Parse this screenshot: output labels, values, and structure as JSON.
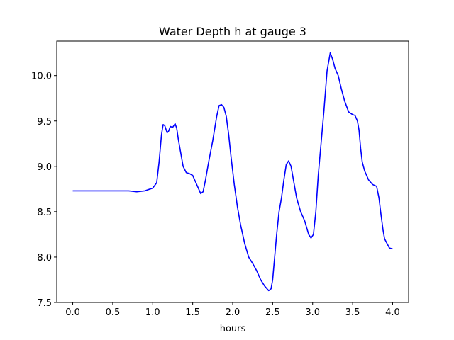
{
  "chart_data": {
    "type": "line",
    "title": "Water Depth h at gauge 3",
    "xlabel": "hours",
    "ylabel": "",
    "xlim": [
      -0.2,
      4.2
    ],
    "ylim": [
      7.5,
      10.38
    ],
    "xticks": [
      0.0,
      0.5,
      1.0,
      1.5,
      2.0,
      2.5,
      3.0,
      3.5,
      4.0
    ],
    "xtick_labels": [
      "0.0",
      "0.5",
      "1.0",
      "1.5",
      "2.0",
      "2.5",
      "3.0",
      "3.5",
      "4.0"
    ],
    "yticks": [
      7.5,
      8.0,
      8.5,
      9.0,
      9.5,
      10.0
    ],
    "ytick_labels": [
      "7.5",
      "8.0",
      "8.5",
      "9.0",
      "9.5",
      "10.0"
    ],
    "grid": false,
    "series": [
      {
        "color": "#0000ff",
        "x": [
          0.0,
          0.2,
          0.4,
          0.6,
          0.7,
          0.8,
          0.9,
          1.0,
          1.05,
          1.08,
          1.11,
          1.13,
          1.15,
          1.18,
          1.2,
          1.22,
          1.25,
          1.28,
          1.3,
          1.32,
          1.35,
          1.38,
          1.42,
          1.46,
          1.5,
          1.55,
          1.6,
          1.63,
          1.66,
          1.7,
          1.75,
          1.8,
          1.83,
          1.86,
          1.89,
          1.92,
          1.95,
          1.98,
          2.02,
          2.06,
          2.1,
          2.15,
          2.2,
          2.25,
          2.3,
          2.35,
          2.4,
          2.45,
          2.48,
          2.5,
          2.52,
          2.55,
          2.58,
          2.61,
          2.64,
          2.67,
          2.7,
          2.73,
          2.76,
          2.8,
          2.85,
          2.9,
          2.95,
          2.98,
          3.01,
          3.04,
          3.07,
          3.1,
          3.14,
          3.18,
          3.22,
          3.25,
          3.28,
          3.32,
          3.36,
          3.4,
          3.45,
          3.5,
          3.53,
          3.56,
          3.58,
          3.6,
          3.62,
          3.65,
          3.7,
          3.75,
          3.8,
          3.83,
          3.85,
          3.88,
          3.9,
          3.93,
          3.96,
          4.0
        ],
        "y": [
          8.73,
          8.73,
          8.73,
          8.73,
          8.73,
          8.72,
          8.73,
          8.76,
          8.82,
          9.05,
          9.35,
          9.46,
          9.45,
          9.37,
          9.39,
          9.44,
          9.43,
          9.47,
          9.42,
          9.3,
          9.15,
          9.0,
          8.93,
          8.92,
          8.9,
          8.8,
          8.7,
          8.72,
          8.85,
          9.05,
          9.28,
          9.55,
          9.67,
          9.68,
          9.65,
          9.55,
          9.35,
          9.1,
          8.8,
          8.55,
          8.35,
          8.15,
          8.0,
          7.93,
          7.85,
          7.75,
          7.68,
          7.63,
          7.65,
          7.75,
          7.95,
          8.25,
          8.5,
          8.65,
          8.85,
          9.02,
          9.06,
          9.0,
          8.85,
          8.65,
          8.5,
          8.4,
          8.25,
          8.21,
          8.25,
          8.5,
          8.9,
          9.2,
          9.6,
          10.05,
          10.25,
          10.18,
          10.08,
          10.0,
          9.85,
          9.72,
          9.6,
          9.57,
          9.56,
          9.5,
          9.4,
          9.2,
          9.05,
          8.95,
          8.85,
          8.8,
          8.78,
          8.65,
          8.5,
          8.3,
          8.2,
          8.15,
          8.1,
          8.09
        ]
      }
    ]
  }
}
